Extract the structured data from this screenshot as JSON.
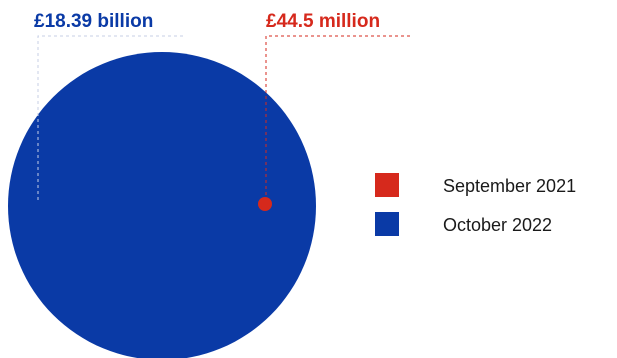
{
  "chart_data": {
    "type": "bubble",
    "unit": "£",
    "series": [
      {
        "name": "September 2021",
        "value": 44500000,
        "label": "£44.5 million",
        "color": "#d6291c"
      },
      {
        "name": "October 2022",
        "value": 18390000000,
        "label": "£18.39 billion",
        "color": "#0a3aa6"
      }
    ],
    "legend_position": "right"
  }
}
